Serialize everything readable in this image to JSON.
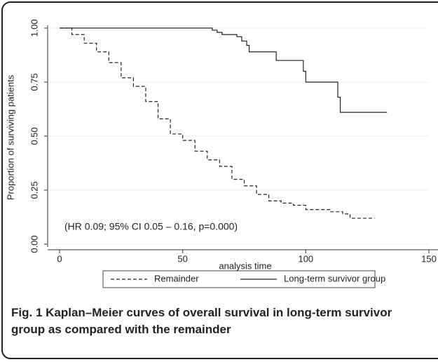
{
  "chart_data": {
    "type": "step",
    "ylabel": "Proportion of surviving patients",
    "xlabel": "analysis time",
    "annotation": "(HR 0.09; 95% CI  0.05 – 0.16, p=0.000)",
    "caption": "Fig. 1 Kaplan–Meier curves of overall survival in long-term survivor group as compared with the remainder",
    "xlim": [
      0,
      150
    ],
    "xticks": [
      0,
      50,
      100,
      150
    ],
    "ylim": [
      0,
      1
    ],
    "yticks": [
      {
        "value": 0,
        "label": "0.00"
      },
      {
        "value": 0.25,
        "label": "0.25"
      },
      {
        "value": 0.5,
        "label": "0.50"
      },
      {
        "value": 0.75,
        "label": "0.75"
      },
      {
        "value": 1,
        "label": "1.00"
      }
    ],
    "grid": true,
    "series": [
      {
        "name": "Remainder",
        "color": "#222222",
        "dash": true,
        "x": [
          0,
          5,
          10,
          15,
          20,
          25,
          30,
          35,
          40,
          45,
          50,
          55,
          60,
          65,
          70,
          75,
          80,
          85,
          90,
          95,
          100,
          110,
          115,
          118,
          128
        ],
        "values": [
          1,
          0.97,
          0.93,
          0.89,
          0.84,
          0.77,
          0.73,
          0.66,
          0.58,
          0.51,
          0.48,
          0.43,
          0.39,
          0.36,
          0.3,
          0.27,
          0.23,
          0.2,
          0.19,
          0.18,
          0.16,
          0.15,
          0.14,
          0.12,
          0.12
        ]
      },
      {
        "name": "Long-term survivor group",
        "color": "#222222",
        "dash": false,
        "x": [
          0,
          62,
          64,
          66,
          72,
          74,
          76,
          77,
          88,
          99,
          100,
          113,
          114,
          133
        ],
        "values": [
          1,
          0.99,
          0.98,
          0.97,
          0.96,
          0.94,
          0.92,
          0.89,
          0.85,
          0.8,
          0.75,
          0.68,
          0.61,
          0.61
        ]
      }
    ]
  }
}
